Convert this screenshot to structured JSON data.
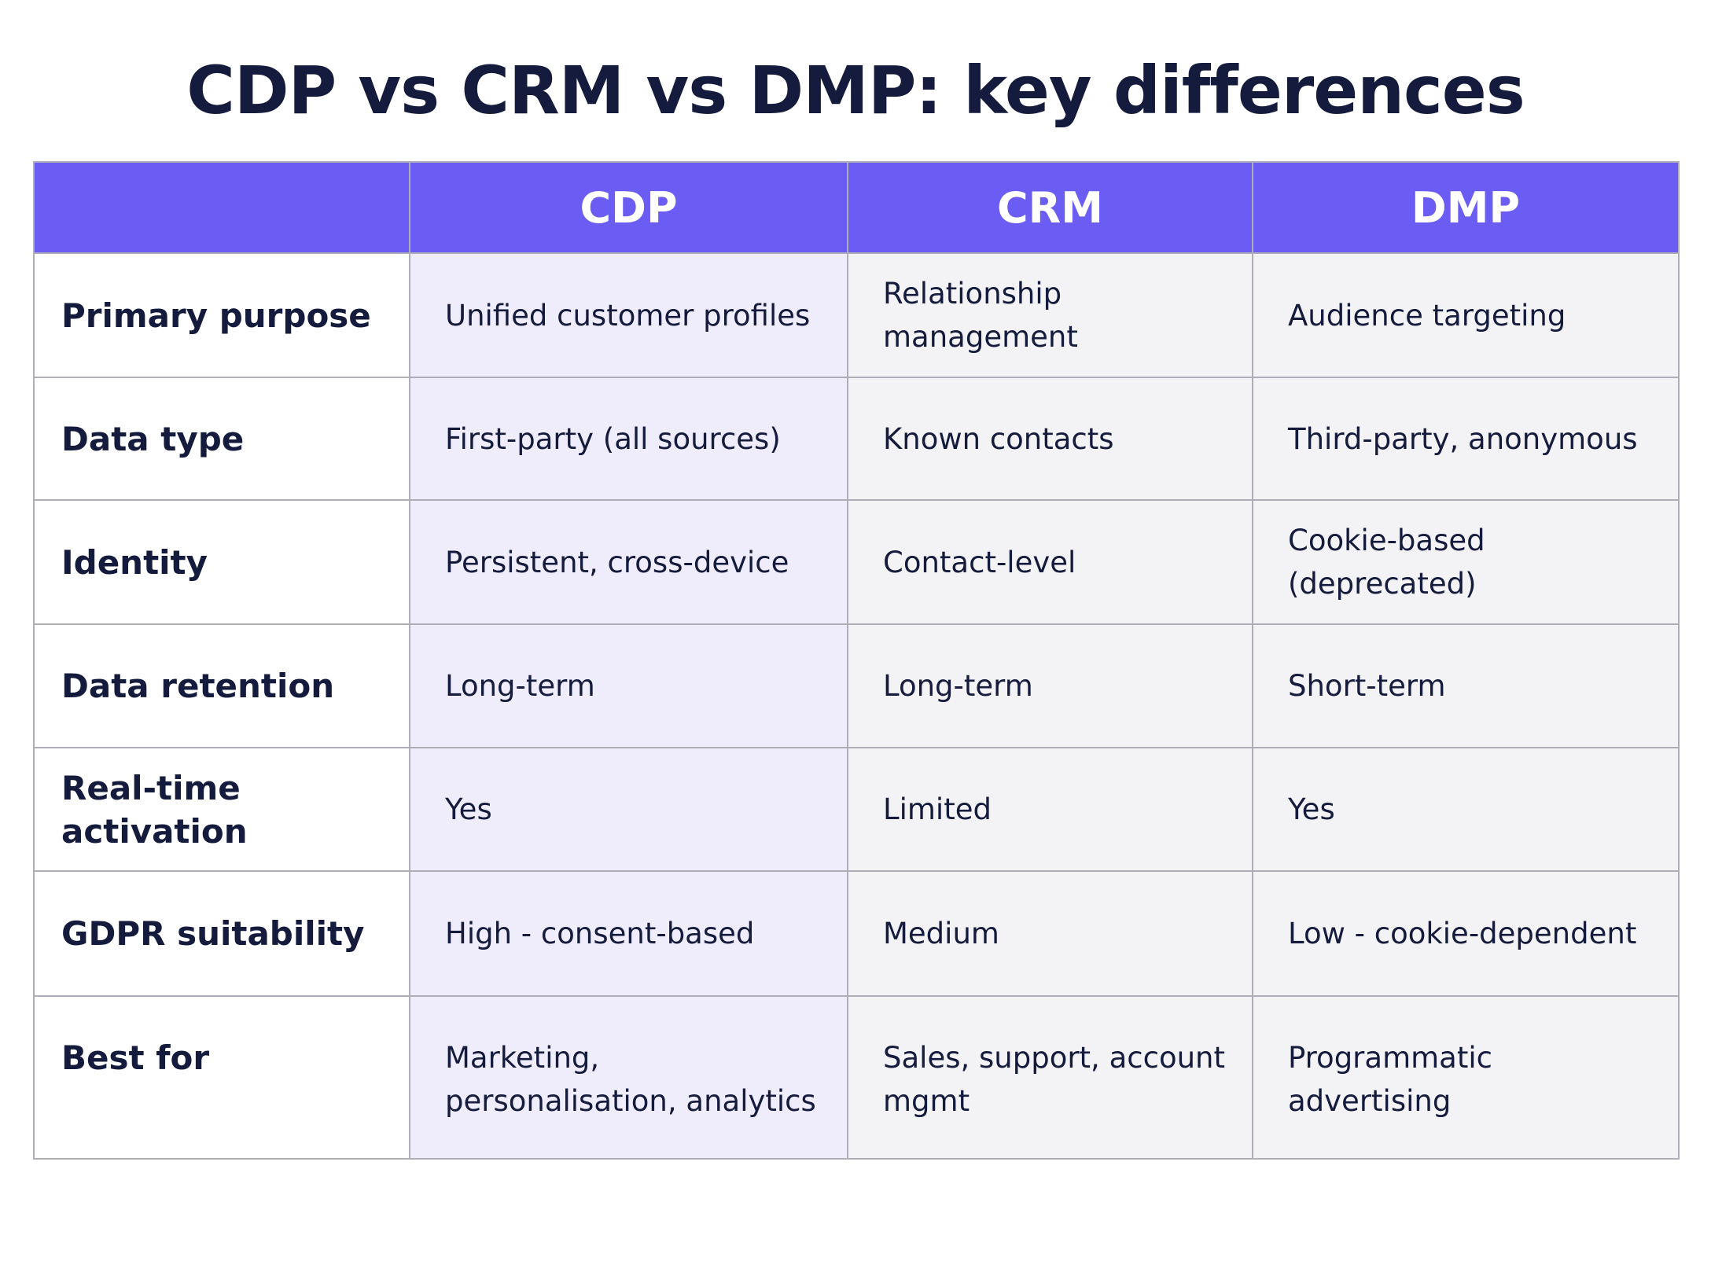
{
  "title": "CDP vs CRM vs DMP: key differences",
  "table": {
    "columns": [
      "CDP",
      "CRM",
      "DMP"
    ],
    "rows": [
      {
        "label": "Primary purpose",
        "cells": [
          "Unified customer profiles",
          "Relationship management",
          "Audience targeting"
        ]
      },
      {
        "label": "Data type",
        "cells": [
          "First-party (all sources)",
          "Known contacts",
          "Third-party, anonymous"
        ]
      },
      {
        "label": "Identity",
        "cells": [
          "Persistent, cross-device",
          "Contact-level",
          "Cookie-based (deprecated)"
        ]
      },
      {
        "label": "Data retention",
        "cells": [
          "Long-term",
          "Long-term",
          "Short-term"
        ]
      },
      {
        "label": "Real-time activation",
        "cells": [
          "Yes",
          "Limited",
          "Yes"
        ]
      },
      {
        "label": "GDPR suitability",
        "cells": [
          "High - consent-based",
          "Medium",
          "Low - cookie-dependent"
        ]
      },
      {
        "label": "Best for",
        "cells": [
          "Marketing, personalisation, analytics",
          "Sales, support, account mgmt",
          "Programmatic advertising"
        ]
      }
    ]
  }
}
